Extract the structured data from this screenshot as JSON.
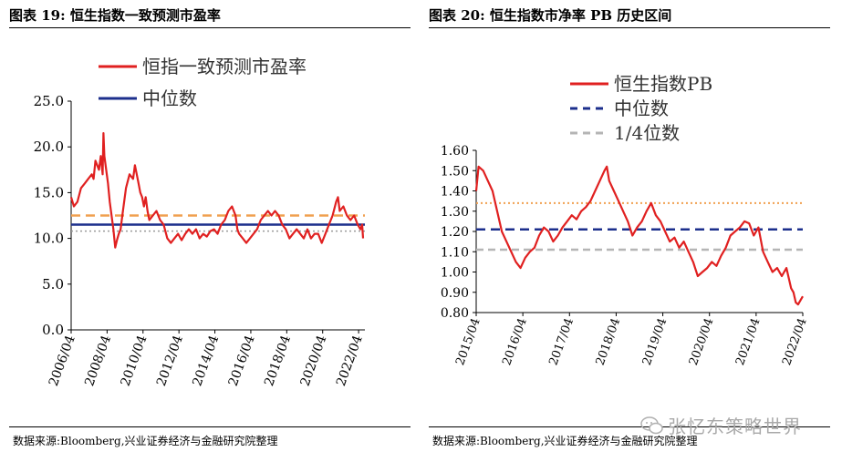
{
  "left": {
    "caption": "图表 19:  恒生指数一致预测市盈率",
    "source": "数据来源:Bloomberg,兴业证券经济与金融研究院整理",
    "chart_data": {
      "type": "line",
      "yticks": [
        "0.0",
        "5.0",
        "10.0",
        "15.0",
        "20.0",
        "25.0"
      ],
      "ylim": [
        0,
        25
      ],
      "xticks": [
        "2006/04",
        "2008/04",
        "2010/04",
        "2012/04",
        "2014/04",
        "2016/04",
        "2018/04",
        "2020/04",
        "2022/04"
      ],
      "xlim": [
        2006.25,
        2022.6
      ],
      "legend": [
        "恒指一致预测市盈率",
        "中位数"
      ],
      "median": 11.5,
      "orange_dashed": 12.5,
      "grey_dotted": 10.8,
      "series": [
        {
          "name": "恒指一致预测市盈率",
          "color": "#e02020",
          "x": [
            2006.25,
            2006.4,
            2006.6,
            2006.8,
            2007.0,
            2007.2,
            2007.4,
            2007.5,
            2007.6,
            2007.8,
            2007.9,
            2008.0,
            2008.05,
            2008.1,
            2008.2,
            2008.3,
            2008.4,
            2008.5,
            2008.6,
            2008.7,
            2008.8,
            2008.9,
            2009.0,
            2009.1,
            2009.2,
            2009.3,
            2009.5,
            2009.7,
            2009.8,
            2009.9,
            2010.0,
            2010.1,
            2010.2,
            2010.3,
            2010.4,
            2010.5,
            2010.6,
            2010.8,
            2011.0,
            2011.2,
            2011.4,
            2011.6,
            2011.8,
            2012.0,
            2012.2,
            2012.4,
            2012.6,
            2012.8,
            2013.0,
            2013.2,
            2013.4,
            2013.6,
            2013.8,
            2014.0,
            2014.2,
            2014.4,
            2014.6,
            2014.8,
            2015.0,
            2015.2,
            2015.4,
            2015.5,
            2015.6,
            2015.8,
            2016.0,
            2016.2,
            2016.4,
            2016.6,
            2016.8,
            2017.0,
            2017.2,
            2017.4,
            2017.6,
            2017.8,
            2018.0,
            2018.2,
            2018.4,
            2018.6,
            2018.8,
            2019.0,
            2019.2,
            2019.4,
            2019.6,
            2019.8,
            2020.0,
            2020.2,
            2020.4,
            2020.6,
            2020.8,
            2021.0,
            2021.1,
            2021.2,
            2021.4,
            2021.6,
            2021.8,
            2022.0,
            2022.2,
            2022.35,
            2022.45,
            2022.5
          ],
          "values": [
            14.5,
            13.5,
            14.0,
            15.5,
            16.0,
            16.5,
            17.0,
            16.5,
            18.5,
            17.5,
            19.0,
            17.0,
            21.5,
            19.0,
            17.5,
            16.0,
            14.0,
            12.5,
            11.0,
            9.0,
            9.8,
            10.5,
            11.0,
            12.5,
            14.0,
            15.5,
            17.0,
            16.5,
            18.0,
            17.0,
            16.0,
            15.0,
            14.5,
            13.5,
            14.5,
            13.0,
            12.0,
            12.5,
            13.0,
            12.0,
            11.5,
            10.0,
            9.5,
            10.0,
            10.5,
            9.8,
            10.5,
            11.0,
            10.5,
            11.0,
            10.0,
            10.5,
            10.2,
            10.8,
            11.0,
            10.5,
            11.5,
            12.0,
            13.0,
            13.5,
            12.5,
            11.0,
            10.5,
            10.0,
            9.5,
            10.0,
            10.5,
            11.0,
            12.0,
            12.5,
            13.0,
            12.5,
            13.0,
            12.5,
            11.5,
            11.0,
            10.0,
            10.5,
            11.0,
            10.5,
            10.0,
            11.0,
            10.0,
            10.5,
            10.5,
            9.5,
            10.5,
            11.5,
            12.5,
            14.0,
            14.5,
            13.0,
            13.5,
            12.5,
            12.0,
            12.5,
            11.5,
            11.0,
            11.5,
            10.0
          ]
        }
      ]
    }
  },
  "right": {
    "caption": "图表 20:  恒生指数市净率 PB 历史区间",
    "source": "数据来源:Bloomberg,兴业证券经济与金融研究院整理",
    "chart_data": {
      "type": "line",
      "yticks": [
        "0.80",
        "0.90",
        "1.00",
        "1.10",
        "1.20",
        "1.30",
        "1.40",
        "1.50",
        "1.60"
      ],
      "ylim": [
        0.8,
        1.6
      ],
      "xticks": [
        "2015/04",
        "2016/04",
        "2017/04",
        "2018/04",
        "2019/04",
        "2020/04",
        "2021/04",
        "2022/04"
      ],
      "xlim": [
        2015.25,
        2022.25
      ],
      "legend": [
        "恒生指数PB",
        "中位数",
        "1/4位数"
      ],
      "median": 1.21,
      "quartile": 1.11,
      "orange_dotted": 1.34,
      "series": [
        {
          "name": "恒生指数PB",
          "color": "#e02020",
          "x": [
            2015.25,
            2015.3,
            2015.4,
            2015.5,
            2015.6,
            2015.7,
            2015.8,
            2015.9,
            2016.0,
            2016.1,
            2016.2,
            2016.3,
            2016.4,
            2016.5,
            2016.6,
            2016.7,
            2016.8,
            2016.9,
            2017.0,
            2017.1,
            2017.2,
            2017.3,
            2017.4,
            2017.5,
            2017.6,
            2017.7,
            2017.8,
            2017.9,
            2018.0,
            2018.05,
            2018.1,
            2018.2,
            2018.3,
            2018.4,
            2018.5,
            2018.6,
            2018.7,
            2018.8,
            2018.9,
            2019.0,
            2019.1,
            2019.2,
            2019.3,
            2019.4,
            2019.5,
            2019.6,
            2019.7,
            2019.8,
            2019.9,
            2020.0,
            2020.1,
            2020.2,
            2020.3,
            2020.4,
            2020.5,
            2020.6,
            2020.7,
            2020.8,
            2020.9,
            2021.0,
            2021.1,
            2021.2,
            2021.3,
            2021.4,
            2021.5,
            2021.6,
            2021.7,
            2021.8,
            2021.9,
            2022.0,
            2022.05,
            2022.1,
            2022.15,
            2022.2,
            2022.25
          ],
          "values": [
            1.4,
            1.52,
            1.5,
            1.45,
            1.4,
            1.3,
            1.2,
            1.15,
            1.1,
            1.05,
            1.02,
            1.07,
            1.1,
            1.12,
            1.18,
            1.22,
            1.2,
            1.15,
            1.18,
            1.22,
            1.25,
            1.28,
            1.26,
            1.3,
            1.32,
            1.35,
            1.4,
            1.45,
            1.5,
            1.52,
            1.45,
            1.4,
            1.35,
            1.3,
            1.25,
            1.18,
            1.22,
            1.25,
            1.3,
            1.34,
            1.28,
            1.25,
            1.2,
            1.15,
            1.17,
            1.12,
            1.15,
            1.1,
            1.05,
            0.98,
            1.0,
            1.02,
            1.05,
            1.03,
            1.08,
            1.12,
            1.18,
            1.2,
            1.22,
            1.25,
            1.24,
            1.18,
            1.22,
            1.1,
            1.05,
            1.0,
            1.02,
            0.98,
            1.02,
            0.92,
            0.9,
            0.85,
            0.84,
            0.86,
            0.88
          ]
        }
      ]
    }
  },
  "watermark": "张忆东策略世界"
}
